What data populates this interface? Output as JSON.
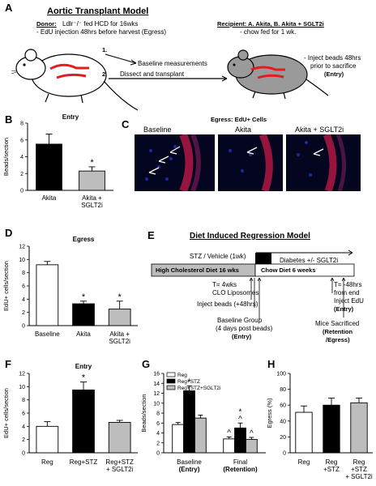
{
  "panel_letters": {
    "a": "A",
    "b": "B",
    "c": "C",
    "d": "D",
    "e": "E",
    "f": "F",
    "g": "G",
    "h": "H"
  },
  "panel_a": {
    "title": "Aortic Transplant Model",
    "donor_head": "Donor:",
    "donor_desc": "Ldlr⁻/⁻ fed HCD for 16wks",
    "donor_line2": "- EdU injection 48hrs before harvest (Egress)",
    "recipient_head": "Recipient: A. Akita, B. Akita + SGLT2i",
    "recipient_line2": "- chow fed for 1 wk.",
    "step1": "1.",
    "step2": "2.",
    "baseline_measure": "Baseline measurements",
    "dissect": "Dissect and transplant",
    "inject_1": "- Inject beads 48hrs",
    "inject_2": "prior to sacrifice",
    "inject_3": "(Entry)"
  },
  "panel_c": {
    "title": "Egress: EdU+ Cells",
    "labels": [
      "Baseline",
      "Akita",
      "Akita + SGLT2i"
    ]
  },
  "panel_e": {
    "title": "Diet Induced Regression Model",
    "stz": "STZ / Vehicle (1wk)",
    "diabetes": "Diabetes +/- SGLT2i",
    "hcd": "High Cholesterol Diet 16 wks",
    "chow": "Chow Diet 6 weeks",
    "t4_1": "T= 4wks",
    "t4_2": "CLO Liposomes",
    "inject": "Inject beads (+48hrs)",
    "baseline_1": "Baseline Group",
    "baseline_2": "(4 days post beads)",
    "baseline_3": "(Entry)",
    "tm48_1": "T= -48hrs",
    "tm48_2": "from end",
    "tm48_3": "Inject EdU",
    "tm48_4": "(Entry)",
    "sac_1": "Mice Sacrificed",
    "sac_2": "(Retention",
    "sac_3": "/Egress)"
  },
  "chart_data": [
    {
      "panel": "B",
      "type": "bar",
      "title": "Entry",
      "ylabel": "Beads/section",
      "ylim": [
        0,
        8
      ],
      "yticks": [
        0,
        2,
        4,
        6,
        8
      ],
      "categories": [
        "Akita",
        "Akita + SGLT2i"
      ],
      "values": [
        5.5,
        2.3
      ],
      "errors": [
        1.2,
        0.5
      ],
      "colors": [
        "#000000",
        "#bdbdbd"
      ],
      "annotations": [
        "",
        "*"
      ]
    },
    {
      "panel": "D",
      "type": "bar",
      "title": "Egress",
      "ylabel": "EdU+ cells/section",
      "ylim": [
        0,
        12
      ],
      "yticks": [
        0,
        2,
        4,
        6,
        8,
        10,
        12
      ],
      "categories": [
        "Baseline",
        "Akita",
        "Akita + SGLT2i"
      ],
      "values": [
        9.2,
        3.3,
        2.5
      ],
      "errors": [
        0.5,
        0.4,
        1.2
      ],
      "colors": [
        "#ffffff",
        "#000000",
        "#bdbdbd"
      ],
      "annotations": [
        "",
        "*",
        "*"
      ]
    },
    {
      "panel": "F",
      "type": "bar",
      "title": "Entry",
      "ylabel": "EdU+ cells/section",
      "ylim": [
        0,
        12
      ],
      "yticks": [
        0,
        2,
        4,
        6,
        8,
        10,
        12
      ],
      "categories": [
        "Reg",
        "Reg+STZ",
        "Reg+STZ + SGLT2i"
      ],
      "values": [
        4.0,
        9.5,
        4.6
      ],
      "errors": [
        0.7,
        1.2,
        0.3
      ],
      "colors": [
        "#ffffff",
        "#000000",
        "#bdbdbd"
      ],
      "annotations": [
        "",
        "*",
        ""
      ]
    },
    {
      "panel": "G",
      "type": "bar",
      "ylabel": "Beads/section",
      "ylim": [
        0,
        16
      ],
      "yticks": [
        0,
        2,
        4,
        6,
        8,
        10,
        12,
        14,
        16
      ],
      "categories": [
        "Baseline (Entry)",
        "Final (Retention)"
      ],
      "series": [
        {
          "name": "Reg",
          "values": [
            5.7,
            2.8
          ],
          "errors": [
            0.4,
            0.4
          ],
          "color": "#ffffff"
        },
        {
          "name": "Reg+STZ",
          "values": [
            12.5,
            5.0
          ],
          "errors": [
            1.0,
            1.0
          ],
          "color": "#000000"
        },
        {
          "name": "Reg+STZ+SGLT2i",
          "values": [
            7.0,
            2.7
          ],
          "errors": [
            0.6,
            0.4
          ],
          "color": "#bdbdbd"
        }
      ],
      "annotations": [
        [
          "",
          "*",
          ""
        ],
        [
          "^",
          "*\n^",
          "^"
        ]
      ],
      "legend": "top-left"
    },
    {
      "panel": "H",
      "type": "bar",
      "ylabel": "Egress (%)",
      "ylim": [
        0,
        100
      ],
      "yticks": [
        0,
        20,
        40,
        60,
        80,
        100
      ],
      "categories": [
        "Reg",
        "Reg +STZ",
        "Reg +STZ + SGLT2i"
      ],
      "values": [
        51,
        60,
        63
      ],
      "errors": [
        8,
        9,
        6
      ],
      "colors": [
        "#ffffff",
        "#000000",
        "#bdbdbd"
      ]
    }
  ]
}
